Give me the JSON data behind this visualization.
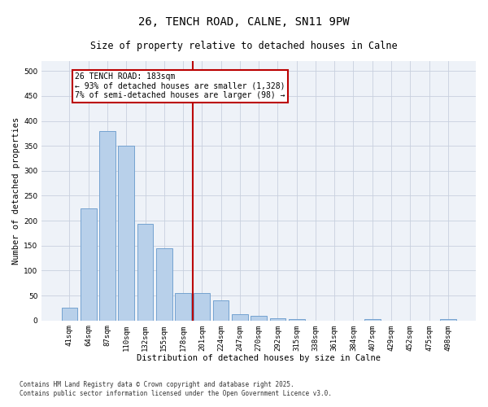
{
  "title": "26, TENCH ROAD, CALNE, SN11 9PW",
  "subtitle": "Size of property relative to detached houses in Calne",
  "xlabel": "Distribution of detached houses by size in Calne",
  "ylabel": "Number of detached properties",
  "bar_categories": [
    "41sqm",
    "64sqm",
    "87sqm",
    "110sqm",
    "132sqm",
    "155sqm",
    "178sqm",
    "201sqm",
    "224sqm",
    "247sqm",
    "270sqm",
    "292sqm",
    "315sqm",
    "338sqm",
    "361sqm",
    "384sqm",
    "407sqm",
    "429sqm",
    "452sqm",
    "475sqm",
    "498sqm"
  ],
  "bar_values": [
    25,
    225,
    380,
    350,
    193,
    145,
    55,
    55,
    40,
    12,
    9,
    5,
    2,
    0,
    0,
    0,
    2,
    0,
    0,
    0,
    2
  ],
  "bar_color": "#b8d0ea",
  "bar_edgecolor": "#6699cc",
  "vline_x_index": 6,
  "vline_color": "#bb0000",
  "annotation_text": "26 TENCH ROAD: 183sqm\n← 93% of detached houses are smaller (1,328)\n7% of semi-detached houses are larger (98) →",
  "annotation_box_color": "#bb0000",
  "annotation_facecolor": "white",
  "ylim": [
    0,
    520
  ],
  "yticks": [
    0,
    50,
    100,
    150,
    200,
    250,
    300,
    350,
    400,
    450,
    500
  ],
  "background_color": "#eef2f8",
  "grid_color": "#c8d0de",
  "footnote": "Contains HM Land Registry data © Crown copyright and database right 2025.\nContains public sector information licensed under the Open Government Licence v3.0.",
  "title_fontsize": 10,
  "subtitle_fontsize": 8.5,
  "label_fontsize": 7.5,
  "tick_fontsize": 6.5,
  "footnote_fontsize": 5.5,
  "annotation_fontsize": 7
}
